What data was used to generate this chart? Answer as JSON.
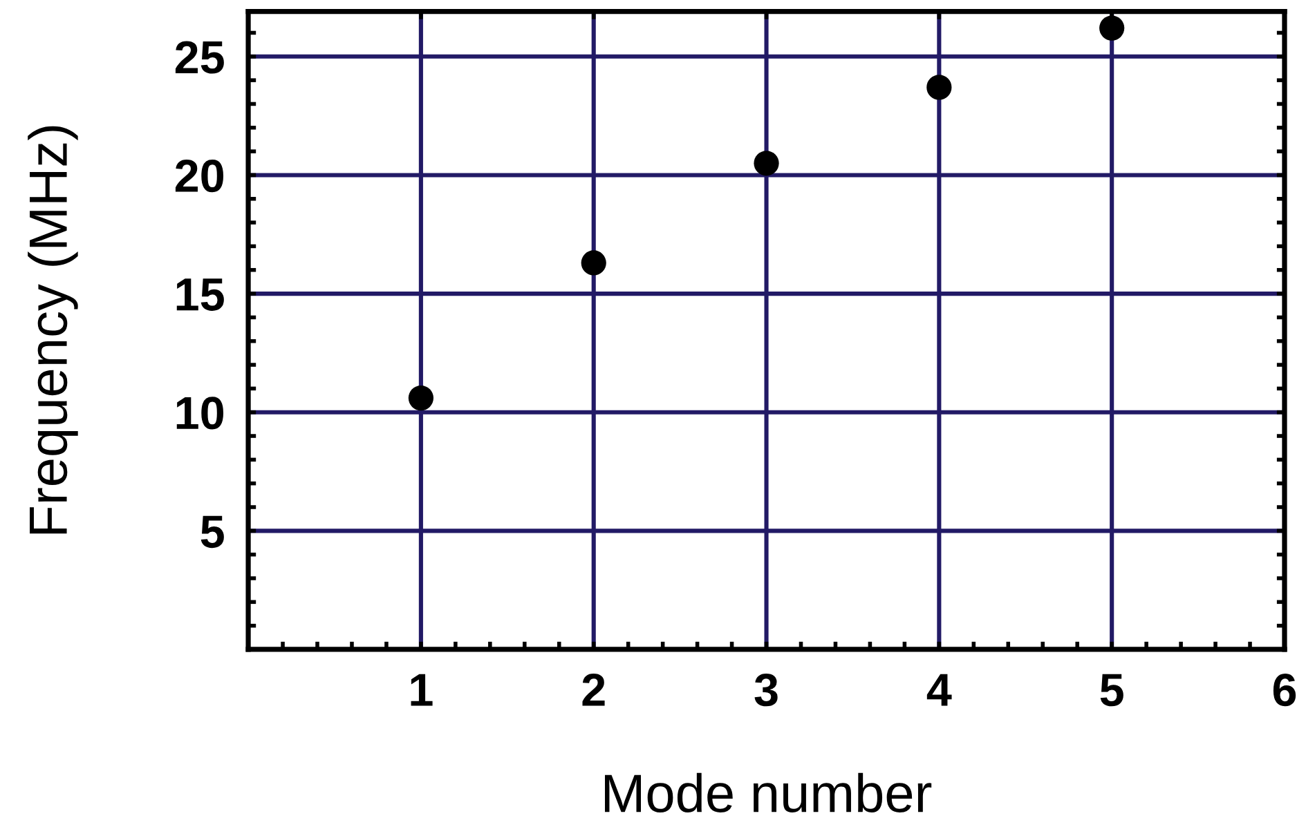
{
  "chart_data": {
    "type": "scatter",
    "xlabel": "Mode number",
    "ylabel": "Frequency (MHz)",
    "x": [
      1,
      2,
      3,
      4,
      5
    ],
    "series": [
      {
        "color": "#000000",
        "values": [
          10.6,
          16.3,
          20.5,
          23.7,
          26.2
        ]
      }
    ],
    "xlim": [
      0,
      6
    ],
    "xticks": [
      1,
      2,
      3,
      4,
      5,
      6
    ],
    "ylim": [
      0,
      26.9
    ],
    "yticks": [
      5,
      10,
      15,
      20,
      25
    ],
    "grid": true,
    "marker": "circle"
  }
}
